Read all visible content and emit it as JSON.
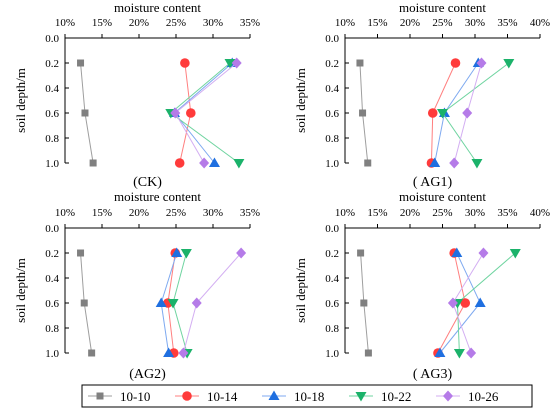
{
  "chart_data": [
    {
      "type": "line",
      "caption": "(CK)",
      "xlabel": "moisture content",
      "ylabel": "soil depth/m",
      "xlim": [
        10,
        35
      ],
      "xticks": [
        "10%",
        "15%",
        "20%",
        "25%",
        "30%",
        "35%"
      ],
      "ylim": [
        0,
        1.0
      ],
      "yticks": [
        "0.0",
        "0.2",
        "0.4",
        "0.6",
        "0.8",
        "1.0"
      ],
      "depths": [
        0.2,
        0.6,
        1.0
      ],
      "series": [
        {
          "name": "10-10",
          "values": [
            12.1,
            12.7,
            13.8
          ]
        },
        {
          "name": "10-14",
          "values": [
            26.2,
            27.0,
            25.5
          ]
        },
        {
          "name": "10-18",
          "values": [
            32.6,
            24.8,
            30.2
          ]
        },
        {
          "name": "10-22",
          "values": [
            32.3,
            24.3,
            33.5
          ]
        },
        {
          "name": "10-26",
          "values": [
            33.2,
            24.9,
            28.8
          ]
        }
      ]
    },
    {
      "type": "line",
      "caption": "(  AG1)",
      "xlabel": "moisture content",
      "ylabel": "soil depth/m",
      "xlim": [
        10,
        40
      ],
      "xticks": [
        "10%",
        "15%",
        "20%",
        "25%",
        "30%",
        "35%",
        "40%"
      ],
      "ylim": [
        0,
        1.0
      ],
      "yticks": [
        "0.0",
        "0.2",
        "0.4",
        "0.6",
        "0.8",
        "1.0"
      ],
      "depths": [
        0.2,
        0.6,
        1.0
      ],
      "series": [
        {
          "name": "10-10",
          "values": [
            12.3,
            12.7,
            13.5
          ]
        },
        {
          "name": "10-14",
          "values": [
            27.0,
            23.5,
            23.3
          ]
        },
        {
          "name": "10-18",
          "values": [
            30.5,
            25.3,
            23.8
          ]
        },
        {
          "name": "10-22",
          "values": [
            35.2,
            25.0,
            30.3
          ]
        },
        {
          "name": "10-26",
          "values": [
            31.0,
            28.8,
            26.8
          ]
        }
      ]
    },
    {
      "type": "line",
      "caption": "(AG2)",
      "xlabel": "moisture content",
      "ylabel": "soil depth/m",
      "xlim": [
        10,
        35
      ],
      "xticks": [
        "10%",
        "15%",
        "20%",
        "25%",
        "30%",
        "35%"
      ],
      "ylim": [
        0,
        1.0
      ],
      "yticks": [
        "0.0",
        "0.2",
        "0.4",
        "0.6",
        "0.8",
        "1.0"
      ],
      "depths": [
        0.2,
        0.6,
        1.0
      ],
      "series": [
        {
          "name": "10-10",
          "values": [
            12.1,
            12.6,
            13.6
          ]
        },
        {
          "name": "10-14",
          "values": [
            24.9,
            23.9,
            24.7
          ]
        },
        {
          "name": "10-18",
          "values": [
            25.1,
            23.0,
            24.0
          ]
        },
        {
          "name": "10-22",
          "values": [
            26.4,
            24.6,
            26.5
          ]
        },
        {
          "name": "10-26",
          "values": [
            33.8,
            27.8,
            26.0
          ]
        }
      ]
    },
    {
      "type": "line",
      "caption": "(  AG3)",
      "xlabel": "moisture content",
      "ylabel": "soil depth/m",
      "xlim": [
        10,
        40
      ],
      "xticks": [
        "10%",
        "15%",
        "20%",
        "25%",
        "30%",
        "35%",
        "40%"
      ],
      "ylim": [
        0,
        1.0
      ],
      "yticks": [
        "0.0",
        "0.2",
        "0.4",
        "0.6",
        "0.8",
        "1.0"
      ],
      "depths": [
        0.2,
        0.6,
        1.0
      ],
      "series": [
        {
          "name": "10-10",
          "values": [
            12.4,
            12.9,
            13.6
          ]
        },
        {
          "name": "10-14",
          "values": [
            26.8,
            28.5,
            24.3
          ]
        },
        {
          "name": "10-18",
          "values": [
            27.2,
            30.8,
            24.6
          ]
        },
        {
          "name": "10-22",
          "values": [
            36.2,
            27.3,
            27.6
          ]
        },
        {
          "name": "10-26",
          "values": [
            31.3,
            26.6,
            29.4
          ]
        }
      ]
    }
  ],
  "legend": {
    "placement": "bottom",
    "items": [
      {
        "label": "10-10",
        "marker": "square",
        "color": "#808080",
        "line_color": "#9e9e9e"
      },
      {
        "label": "10-14",
        "marker": "circle",
        "color": "#ff3b3b",
        "line_color": "#ff7f7f"
      },
      {
        "label": "10-18",
        "marker": "triangle-up",
        "color": "#1f6fe0",
        "line_color": "#7faaf0"
      },
      {
        "label": "10-22",
        "marker": "triangle-down",
        "color": "#1bb26a",
        "line_color": "#6fd4a0"
      },
      {
        "label": "10-26",
        "marker": "diamond",
        "color": "#b57be8",
        "line_color": "#d3aef2"
      }
    ]
  }
}
